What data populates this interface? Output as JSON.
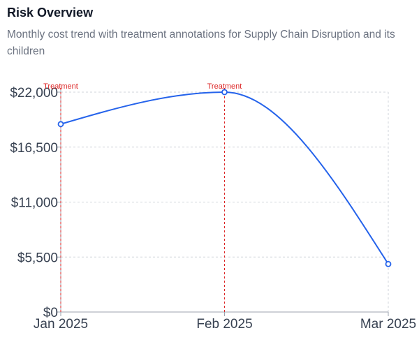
{
  "header": {
    "title": "Risk Overview",
    "subtitle": "Monthly cost trend with treatment annotations for Supply Chain Disruption and its children"
  },
  "colors": {
    "line": "#2563eb",
    "annotation": "#dc2626",
    "grid": "#d1d5db",
    "axis": "#9ca3af",
    "tick_text": "#374151"
  },
  "chart_data": {
    "type": "line",
    "categories": [
      "Jan 2025",
      "Feb 2025",
      "Mar 2025"
    ],
    "series": [
      {
        "values": [
          18800,
          22000,
          4800
        ]
      }
    ],
    "ylim": [
      0,
      22000
    ],
    "yticks": [
      0,
      5500,
      11000,
      16500,
      22000
    ],
    "ytick_labels": [
      "$0",
      "$5,500",
      "$11,000",
      "$16,500",
      "$22,000"
    ],
    "grid": true,
    "annotations": [
      {
        "category": "Jan 2025",
        "label": "Treatment"
      },
      {
        "category": "Feb 2025",
        "label": "Treatment"
      }
    ]
  }
}
